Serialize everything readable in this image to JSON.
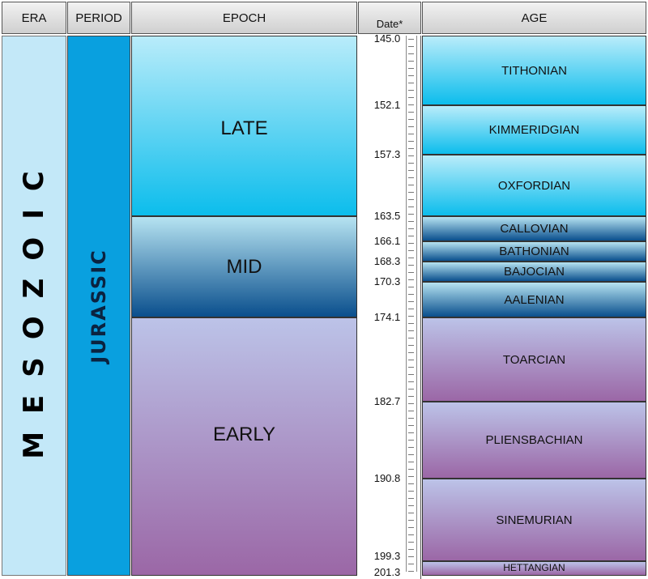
{
  "headers": {
    "era": "ERA",
    "period": "PERIOD",
    "epoch": "EPOCH",
    "date": "Date*",
    "age": "AGE"
  },
  "era": "MESOZOIC",
  "period": "JURASSIC",
  "epochs": [
    {
      "label": "LATE",
      "start": 145.0,
      "end": 163.5
    },
    {
      "label": "MID",
      "start": 163.5,
      "end": 174.1
    },
    {
      "label": "EARLY",
      "start": 174.1,
      "end": 201.3
    }
  ],
  "ages": [
    {
      "label": "TITHONIAN",
      "start": 145.0,
      "end": 152.1
    },
    {
      "label": "KIMMERIDGIAN",
      "start": 152.1,
      "end": 157.3
    },
    {
      "label": "OXFORDIAN",
      "start": 157.3,
      "end": 163.5
    },
    {
      "label": "CALLOVIAN",
      "start": 163.5,
      "end": 166.1
    },
    {
      "label": "BATHONIAN",
      "start": 166.1,
      "end": 168.3
    },
    {
      "label": "BAJOCIAN",
      "start": 168.3,
      "end": 170.3
    },
    {
      "label": "AALENIAN",
      "start": 170.3,
      "end": 174.1
    },
    {
      "label": "TOARCIAN",
      "start": 174.1,
      "end": 182.7
    },
    {
      "label": "PLIENSBACHIAN",
      "start": 182.7,
      "end": 190.8
    },
    {
      "label": "SINEMURIAN",
      "start": 190.8,
      "end": 199.3
    },
    {
      "label": "HETTANGIAN",
      "start": 199.3,
      "end": 201.3
    }
  ],
  "dates": [
    "145.0",
    "152.1",
    "157.3",
    "163.5",
    "166.1",
    "168.3",
    "170.3",
    "174.1",
    "182.7",
    "190.8",
    "199.3",
    "201.3"
  ],
  "colors": {
    "late": "#0cbdec",
    "mid": "#0a4f8d",
    "early": "#9b67a6",
    "era": "#c3e8f8",
    "period": "#09a0df"
  }
}
